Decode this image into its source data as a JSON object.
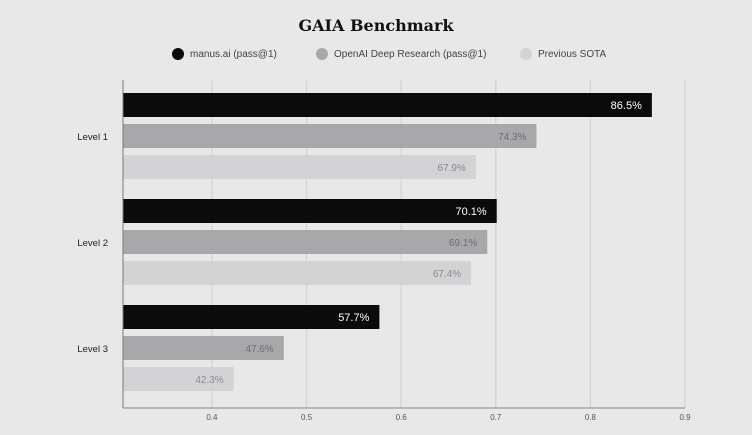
{
  "chart_data": {
    "type": "bar",
    "orientation": "horizontal",
    "title": "GAIA Benchmark",
    "categories": [
      "Level 1",
      "Level 2",
      "Level 3"
    ],
    "series": [
      {
        "name": "manus.ai (pass@1)",
        "values": [
          0.865,
          0.701,
          0.577
        ],
        "labels": [
          "86.5%",
          "70.1%",
          "57.7%"
        ],
        "color": "#0b0b0b"
      },
      {
        "name": "OpenAI Deep Research (pass@1)",
        "values": [
          0.743,
          0.691,
          0.476
        ],
        "labels": [
          "74.3%",
          "69.1%",
          "47.6%"
        ],
        "color": "#a8a8ab"
      },
      {
        "name": "Previous SOTA",
        "values": [
          0.679,
          0.674,
          0.423
        ],
        "labels": [
          "67.9%",
          "67.4%",
          "42.3%"
        ],
        "color": "#d3d3d6"
      }
    ],
    "xticks": [
      "0.4",
      "0.5",
      "0.6",
      "0.7",
      "0.8",
      "0.9"
    ],
    "xlim": [
      0.306,
      0.9
    ],
    "grid": true,
    "legend_position": "top"
  }
}
